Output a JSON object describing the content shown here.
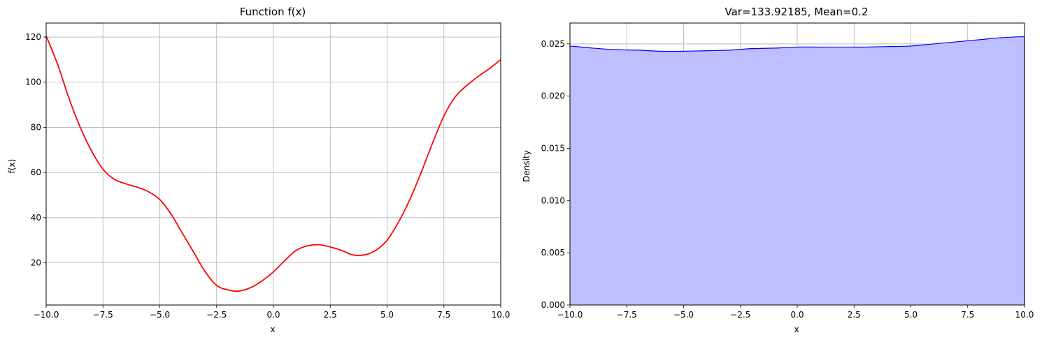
{
  "chart_data": [
    {
      "type": "line",
      "title": "Function f(x)",
      "xlabel": "x",
      "ylabel": "f(x)",
      "xlim": [
        -10,
        10
      ],
      "ylim": [
        1.3,
        126.2
      ],
      "grid": true,
      "xticks": [
        "−10.0",
        "−7.5",
        "−5.0",
        "−2.5",
        "0.0",
        "2.5",
        "5.0",
        "7.5",
        "10.0"
      ],
      "xtick_values": [
        -10,
        -7.5,
        -5,
        -2.5,
        0,
        2.5,
        5,
        7.5,
        10
      ],
      "yticks": [
        "20",
        "40",
        "60",
        "80",
        "100",
        "120"
      ],
      "ytick_values": [
        20,
        40,
        60,
        80,
        100,
        120
      ],
      "color": "#ff0000",
      "series": [
        {
          "x": [
            -10,
            -9.5,
            -9,
            -8.5,
            -8,
            -7.5,
            -7,
            -6.5,
            -6,
            -5.5,
            -5,
            -4.5,
            -4,
            -3.5,
            -3,
            -2.5,
            -2,
            -1.5,
            -1,
            -0.5,
            0,
            0.5,
            1,
            1.5,
            2,
            2.5,
            3,
            3.5,
            4,
            4.5,
            5,
            5.5,
            6,
            6.5,
            7,
            7.5,
            8,
            8.5,
            9,
            9.5,
            10
          ],
          "y": [
            120.5,
            108,
            93,
            80,
            69.5,
            61.5,
            57,
            55,
            53.5,
            51.5,
            48,
            41.5,
            33,
            24.5,
            16,
            10,
            8,
            7.5,
            9,
            12,
            16,
            21,
            25.5,
            27.5,
            28,
            27,
            25.5,
            23.5,
            23.5,
            25.5,
            30,
            38,
            48,
            60,
            73,
            85,
            93.5,
            98.5,
            102.5,
            106,
            110
          ]
        }
      ]
    },
    {
      "type": "area",
      "title": "Var=133.92185, Mean=0.2",
      "xlabel": "x",
      "ylabel": "Density",
      "xlim": [
        -10,
        10
      ],
      "ylim": [
        0,
        0.027
      ],
      "grid": true,
      "xticks": [
        "−10.0",
        "−7.5",
        "−5.0",
        "−2.5",
        "0.0",
        "2.5",
        "5.0",
        "7.5",
        "10.0"
      ],
      "xtick_values": [
        -10,
        -7.5,
        -5,
        -2.5,
        0,
        2.5,
        5,
        7.5,
        10
      ],
      "yticks": [
        "0.000",
        "0.005",
        "0.010",
        "0.015",
        "0.020",
        "0.025"
      ],
      "ytick_values": [
        0,
        0.005,
        0.01,
        0.015,
        0.02,
        0.025
      ],
      "line_color": "#0000ff",
      "fill_color": "#bfbfff",
      "series": [
        {
          "x": [
            -10,
            -9,
            -8,
            -7,
            -6,
            -5,
            -4,
            -3,
            -2,
            -1,
            0,
            1,
            2,
            3,
            4,
            5,
            6,
            7,
            8,
            9,
            10
          ],
          "y": [
            0.0248,
            0.0246,
            0.02445,
            0.0244,
            0.0243,
            0.0243,
            0.02435,
            0.0244,
            0.02455,
            0.0246,
            0.0247,
            0.0247,
            0.0247,
            0.0247,
            0.02475,
            0.0248,
            0.025,
            0.0252,
            0.0254,
            0.0256,
            0.0257
          ]
        }
      ]
    }
  ]
}
